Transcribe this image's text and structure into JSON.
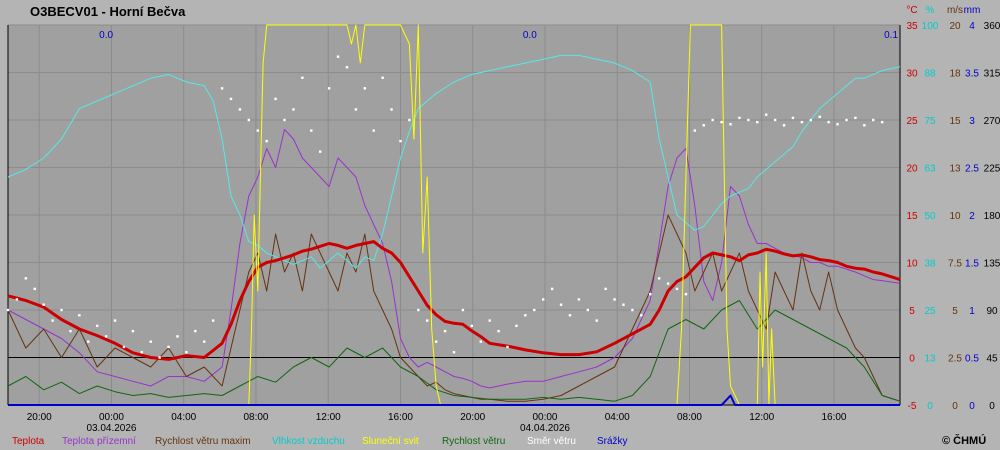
{
  "title": "O3BECV01 - Horní Bečva",
  "copyright": "© ČHMÚ",
  "colors": {
    "background": "#b4b4b4",
    "plot": "#a0a0a0",
    "grid": "#8c8c8c",
    "teplota": "#cc0000",
    "teplota_prizemni": "#9933cc",
    "rychlost_maxim": "#663311",
    "vlhkost": "#55e8e8",
    "slunecni_svit": "#ffff00",
    "rychlost": "#116611",
    "smer": "#ffffff",
    "srazky": "#0000cc"
  },
  "chart_data": {
    "type": "line",
    "x_axis": {
      "ticks": [
        "20:00",
        "00:00",
        "04:00",
        "08:00",
        "12:00",
        "16:00",
        "20:00",
        "00:00",
        "04:00",
        "08:00",
        "12:00",
        "16:00"
      ],
      "dates": [
        "03.04.2026",
        "04.04.2026"
      ]
    },
    "y_axes": [
      {
        "unit": "°C",
        "color": "#cc0000",
        "ticks": [
          "35",
          "30",
          "25",
          "20",
          "15",
          "10",
          "5",
          "0",
          "-5"
        ],
        "range": [
          -5,
          35
        ]
      },
      {
        "unit": "%",
        "color": "#00cccc",
        "ticks": [
          "100",
          "88",
          "75",
          "63",
          "50",
          "38",
          "25",
          "13",
          "0"
        ],
        "range": [
          0,
          100
        ]
      },
      {
        "unit": "m/s",
        "color": "#663311",
        "ticks": [
          "20",
          "18",
          "15",
          "13",
          "10",
          "7.5",
          "5",
          "2.5",
          "0"
        ],
        "range": [
          0,
          20
        ]
      },
      {
        "unit": "mm",
        "color": "#0000cc",
        "ticks": [
          "4",
          "3.5",
          "3",
          "2.5",
          "2",
          "1.5",
          "1",
          "0.5",
          "0"
        ],
        "range": [
          0,
          4
        ]
      },
      {
        "unit": "",
        "color": "#000000",
        "ticks": [
          "360",
          "315",
          "270",
          "225",
          "180",
          "135",
          "90",
          "45",
          "0"
        ],
        "range": [
          0,
          360
        ]
      }
    ],
    "annotations": [
      "0.0",
      "0.0",
      "0.1"
    ],
    "legend": [
      "Teplota",
      "Teplota přízemní",
      "Rychlost větru maxim",
      "Vlhkost vzduchu",
      "Sluneční svit",
      "Rychlost větru",
      "Směr větru",
      "Srážky"
    ],
    "x_range": [
      0,
      100
    ],
    "series": [
      {
        "name": "Teplota",
        "axis": 0,
        "color": "#cc0000",
        "width": 3,
        "x": [
          0,
          2,
          4,
          6,
          8,
          10,
          12,
          14,
          16,
          18,
          20,
          22,
          24,
          25,
          26,
          27,
          28,
          29,
          30,
          31,
          32,
          33,
          34,
          35,
          36,
          37,
          38,
          39,
          40,
          41,
          42,
          43,
          44,
          45,
          46,
          47,
          48,
          49,
          50,
          51,
          52,
          53,
          54,
          56,
          58,
          60,
          62,
          64,
          66,
          68,
          70,
          72,
          73,
          74,
          75,
          76,
          77,
          78,
          79,
          80,
          81,
          82,
          83,
          84,
          85,
          86,
          87,
          88,
          89,
          90,
          91,
          92,
          93,
          94,
          95,
          96,
          97,
          98,
          100
        ],
        "y": [
          6.5,
          6,
          5.3,
          4,
          3,
          2.3,
          1.5,
          0.5,
          0,
          -0.2,
          0.2,
          0,
          1.5,
          3.5,
          6,
          8,
          9.5,
          10,
          10.2,
          10.5,
          10.8,
          11.2,
          11.4,
          11.7,
          12,
          11.8,
          11.5,
          11.8,
          12,
          12.2,
          11.5,
          11,
          10,
          8.5,
          7,
          5.5,
          4.5,
          3.8,
          3.6,
          3.5,
          2.8,
          2.2,
          1.5,
          1.2,
          0.8,
          0.5,
          0.3,
          0.3,
          0.6,
          1.5,
          2.5,
          3.5,
          5,
          7,
          8,
          8.5,
          9.5,
          10.5,
          11,
          10.8,
          10.6,
          10.2,
          10.8,
          11,
          11.4,
          11.2,
          10.9,
          10.7,
          10.8,
          10.6,
          10.3,
          10.2,
          10,
          9.6,
          9.4,
          9.3,
          9,
          8.8,
          8.2
        ]
      },
      {
        "name": "Teplota přízemní",
        "axis": 0,
        "color": "#9933cc",
        "width": 1,
        "x": [
          0,
          2,
          4,
          6,
          8,
          10,
          12,
          14,
          16,
          18,
          20,
          22,
          24,
          25,
          26,
          27,
          28,
          29,
          30,
          31,
          32,
          33,
          34,
          35,
          36,
          37,
          38,
          39,
          40,
          41,
          42,
          43,
          44,
          45,
          46,
          47,
          48,
          49,
          50,
          51,
          52,
          53,
          54,
          56,
          58,
          60,
          62,
          64,
          66,
          68,
          70,
          72,
          73,
          74,
          75,
          76,
          77,
          78,
          79,
          80,
          81,
          82,
          83,
          84,
          85,
          86,
          87,
          88,
          89,
          90,
          91,
          92,
          93,
          94,
          95,
          96,
          97,
          98,
          100
        ],
        "y": [
          5,
          4,
          3,
          2,
          0.5,
          -1.5,
          -2,
          -2.5,
          -3,
          -2,
          -2,
          -2.5,
          -1,
          5,
          12,
          17,
          19,
          22,
          20,
          24,
          23,
          21,
          20,
          19,
          18,
          21,
          20,
          19,
          16,
          14,
          12,
          8,
          2,
          0,
          -1,
          -0.5,
          -1,
          -1.5,
          -2,
          -2.2,
          -2.5,
          -3,
          -3.2,
          -2.8,
          -2.5,
          -2.5,
          -2,
          -1.5,
          -1,
          0,
          2,
          6,
          12,
          18,
          21,
          22,
          16,
          8,
          6,
          10,
          18,
          17,
          14,
          12,
          12,
          11.5,
          11,
          10.8,
          10.5,
          10,
          10,
          9.6,
          9.6,
          9.3,
          9,
          8.6,
          8.2,
          8.1,
          7.8
        ]
      },
      {
        "name": "Rychlost větru maxim",
        "axis": 2,
        "color": "#663311",
        "width": 1,
        "x": [
          0,
          2,
          4,
          6,
          8,
          10,
          12,
          14,
          16,
          18,
          20,
          22,
          24,
          25,
          26,
          27,
          28,
          29,
          30,
          31,
          32,
          33,
          34,
          35,
          36,
          37,
          38,
          39,
          40,
          41,
          42,
          43,
          44,
          45,
          46,
          47,
          48,
          49,
          50,
          51,
          52,
          53,
          54,
          56,
          58,
          60,
          62,
          64,
          66,
          68,
          70,
          72,
          73,
          74,
          75,
          76,
          77,
          78,
          79,
          80,
          81,
          82,
          83,
          84,
          85,
          86,
          87,
          88,
          89,
          90,
          91,
          92,
          93,
          94,
          95,
          96,
          97,
          98,
          100
        ],
        "y": [
          5,
          3,
          4,
          2.5,
          4,
          2,
          3,
          2.5,
          2,
          3,
          1.5,
          2,
          1,
          3,
          5,
          7,
          8,
          6,
          9,
          7,
          8,
          6,
          9,
          8,
          7,
          6,
          8,
          7,
          9,
          6,
          5,
          4,
          2.5,
          2,
          1.5,
          1,
          1.2,
          0.8,
          0.6,
          0.5,
          0.4,
          0.3,
          0.3,
          0.2,
          0.2,
          0.3,
          0.5,
          1,
          1.5,
          2,
          4,
          6,
          8,
          10,
          9,
          8,
          6,
          7,
          8,
          6,
          7,
          8,
          6,
          5,
          4,
          7,
          6,
          5,
          8,
          6,
          5,
          7,
          5,
          4,
          3,
          2.5,
          1.5,
          0.5,
          0.2
        ]
      },
      {
        "name": "Vlhkost vzduchu",
        "axis": 1,
        "color": "#55e8e8",
        "width": 1,
        "x": [
          0,
          2,
          4,
          6,
          8,
          10,
          12,
          14,
          16,
          18,
          20,
          22,
          23,
          24,
          25,
          26,
          27,
          28,
          29,
          30,
          31,
          32,
          33,
          34,
          35,
          36,
          37,
          38,
          39,
          40,
          41,
          42,
          43,
          44,
          45,
          46,
          48,
          50,
          52,
          54,
          56,
          58,
          60,
          62,
          64,
          66,
          68,
          70,
          72,
          73,
          74,
          75,
          76,
          77,
          78,
          79,
          80,
          81,
          82,
          83,
          84,
          85,
          86,
          87,
          88,
          89,
          90,
          91,
          92,
          93,
          94,
          95,
          96,
          97,
          98,
          100
        ],
        "y": [
          60,
          62,
          65,
          70,
          78,
          80,
          82,
          84,
          86,
          87,
          85,
          84,
          80,
          70,
          55,
          50,
          43,
          42,
          40,
          39,
          38,
          37,
          38,
          39,
          36,
          38,
          40,
          38,
          36,
          39,
          38,
          45,
          55,
          65,
          72,
          78,
          82,
          85,
          87,
          88,
          89,
          90,
          91,
          92,
          92,
          91,
          90,
          88,
          85,
          70,
          60,
          50,
          48,
          46,
          47,
          50,
          53,
          55,
          56,
          57,
          60,
          62,
          64,
          66,
          68,
          72,
          75,
          78,
          80,
          82,
          84,
          86,
          86,
          87,
          88,
          89
        ]
      },
      {
        "name": "Sluneční svit",
        "axis": 1,
        "color": "#ffff00",
        "width": 1,
        "x": [
          0,
          27,
          27.3,
          27.6,
          28,
          28.3,
          28.6,
          29,
          38,
          38.5,
          39,
          39.5,
          40,
          44,
          45,
          45.5,
          46,
          46.5,
          47,
          47.5,
          48,
          48.5,
          49,
          60,
          75,
          75.5,
          76,
          76.5,
          77,
          80,
          80.3,
          80.6,
          81,
          82,
          84,
          84.3,
          84.6,
          85,
          85.3,
          85.6,
          86,
          100
        ],
        "y": [
          0,
          0,
          20,
          50,
          30,
          60,
          90,
          100,
          100,
          95,
          100,
          90,
          100,
          100,
          95,
          70,
          100,
          40,
          60,
          20,
          5,
          0,
          0,
          0,
          0,
          20,
          60,
          100,
          100,
          100,
          60,
          20,
          5,
          0,
          0,
          35,
          10,
          40,
          0,
          20,
          0,
          0
        ]
      },
      {
        "name": "Rychlost větru",
        "axis": 2,
        "color": "#116611",
        "width": 1,
        "x": [
          0,
          2,
          4,
          6,
          8,
          10,
          12,
          14,
          16,
          18,
          20,
          22,
          24,
          26,
          28,
          30,
          32,
          34,
          36,
          38,
          40,
          42,
          44,
          46,
          48,
          50,
          52,
          54,
          56,
          58,
          60,
          62,
          64,
          66,
          68,
          70,
          72,
          74,
          76,
          78,
          80,
          82,
          84,
          86,
          88,
          90,
          92,
          94,
          96,
          98,
          100
        ],
        "y": [
          1,
          1.5,
          0.8,
          1.2,
          0.6,
          1,
          0.7,
          0.5,
          0.6,
          0.4,
          0.5,
          0.6,
          0.5,
          1,
          1.5,
          1.2,
          2,
          2.5,
          2,
          3,
          2.5,
          3,
          2,
          1.5,
          0.8,
          0.5,
          0.4,
          0.3,
          0.3,
          0.3,
          0.4,
          0.3,
          0.4,
          0.3,
          0.2,
          0.5,
          1.5,
          4,
          4.5,
          4,
          5,
          5.5,
          4,
          5,
          4.5,
          4,
          3.5,
          3,
          2,
          0.5,
          0.2
        ]
      },
      {
        "name": "Srážky",
        "axis": 3,
        "color": "#0000cc",
        "width": 2,
        "x": [
          0,
          80,
          80.5,
          81,
          81.5,
          100
        ],
        "y": [
          0,
          0,
          0.05,
          0.1,
          0,
          0
        ]
      }
    ],
    "direction": {
      "name": "Směr větru",
      "axis": 4,
      "color": "#ffffff",
      "x": [
        0,
        1,
        2,
        3,
        4,
        5,
        6,
        7,
        8,
        9,
        10,
        11,
        12,
        13,
        14,
        15,
        16,
        17,
        18,
        19,
        20,
        21,
        22,
        23,
        24,
        25,
        26,
        27,
        28,
        29,
        30,
        31,
        32,
        33,
        34,
        35,
        36,
        37,
        38,
        39,
        40,
        41,
        42,
        43,
        44,
        45,
        46,
        47,
        48,
        49,
        50,
        51,
        52,
        53,
        54,
        55,
        56,
        57,
        58,
        59,
        60,
        61,
        62,
        63,
        64,
        65,
        66,
        67,
        68,
        69,
        70,
        71,
        72,
        73,
        74,
        75,
        76,
        77,
        78,
        79,
        80,
        81,
        82,
        83,
        84,
        85,
        86,
        87,
        88,
        89,
        90,
        91,
        92,
        93,
        94,
        95,
        96,
        97,
        98
      ],
      "y": [
        90,
        100,
        120,
        110,
        95,
        80,
        90,
        70,
        85,
        60,
        75,
        65,
        80,
        55,
        70,
        50,
        60,
        45,
        55,
        65,
        50,
        70,
        60,
        80,
        300,
        290,
        280,
        270,
        260,
        250,
        290,
        270,
        280,
        310,
        260,
        240,
        300,
        330,
        320,
        280,
        300,
        260,
        310,
        280,
        250,
        270,
        90,
        80,
        60,
        70,
        50,
        90,
        75,
        60,
        80,
        70,
        55,
        75,
        85,
        90,
        100,
        110,
        95,
        85,
        100,
        90,
        80,
        110,
        100,
        95,
        90,
        85,
        105,
        120,
        115,
        110,
        105,
        260,
        265,
        270,
        268,
        266,
        272,
        270,
        268,
        275,
        270,
        265,
        272,
        268,
        270,
        273,
        268,
        266,
        270,
        272,
        265,
        270,
        268
      ]
    }
  }
}
